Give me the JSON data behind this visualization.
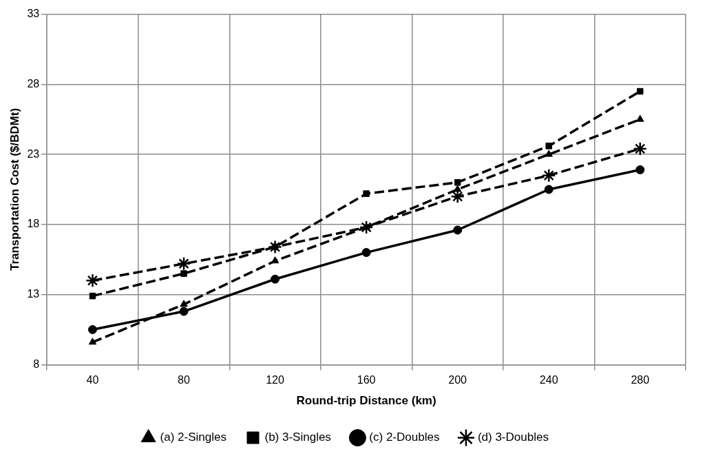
{
  "chart_data": {
    "type": "line",
    "xlabel": "Round-trip Distance (km)",
    "ylabel": "Transportation Cost ($/BDMt)",
    "categories": [
      "40",
      "80",
      "120",
      "160",
      "200",
      "240",
      "280"
    ],
    "ylim": [
      8,
      33
    ],
    "yticks": [
      8,
      13,
      18,
      23,
      28,
      33
    ],
    "grid": true,
    "legend": "bottom",
    "series": [
      {
        "name": "(a) 2-Singles",
        "color": "#000000",
        "marker": "triangle",
        "line_style": "dashed",
        "values": [
          9.6,
          12.3,
          15.4,
          17.8,
          20.5,
          23.0,
          25.5
        ]
      },
      {
        "name": "(b) 3-Singles",
        "color": "#000000",
        "marker": "square",
        "line_style": "dashed",
        "values": [
          12.9,
          14.5,
          16.4,
          20.2,
          21.0,
          23.6,
          27.5
        ]
      },
      {
        "name": "(c) 2-Doubles",
        "color": "#000000",
        "marker": "circle",
        "line_style": "solid",
        "values": [
          10.5,
          11.8,
          14.1,
          16.0,
          17.6,
          20.5,
          21.9
        ]
      },
      {
        "name": "(d) 3-Doubles",
        "color": "#000000",
        "marker": "cross",
        "line_style": "dashed",
        "values": [
          14.0,
          15.2,
          16.4,
          17.8,
          20.0,
          21.5,
          23.4
        ]
      }
    ]
  }
}
